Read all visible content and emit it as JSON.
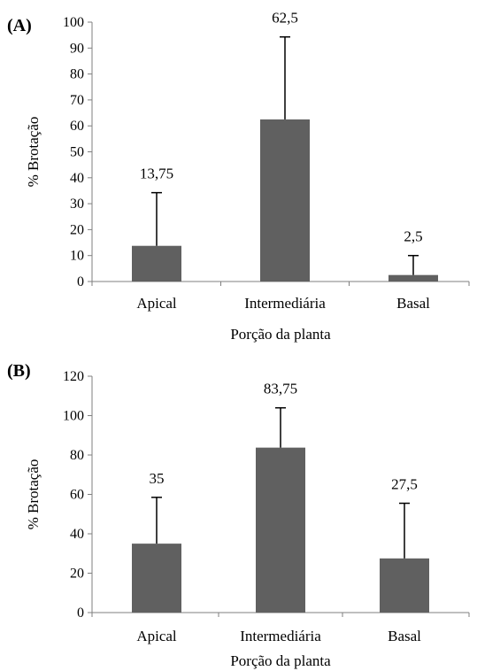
{
  "chart_data": [
    {
      "panel_label": "(A)",
      "type": "bar",
      "categories": [
        "Apical",
        "Intermediária",
        "Basal"
      ],
      "values": [
        13.75,
        62.5,
        2.5
      ],
      "value_labels": [
        "13,75",
        "62,5",
        "2,5"
      ],
      "error_plus": [
        20.5,
        31.8,
        7.5
      ],
      "xlabel": "Porção da planta",
      "ylabel": "% Brotação",
      "ylim": [
        0,
        100
      ],
      "yticks": [
        0,
        10,
        20,
        30,
        40,
        50,
        60,
        70,
        80,
        90,
        100
      ],
      "bar_color": "#606060",
      "grid": false
    },
    {
      "panel_label": "(B)",
      "type": "bar",
      "categories": [
        "Apical",
        "Intermediária",
        "Basal"
      ],
      "values": [
        35,
        83.75,
        27.5
      ],
      "value_labels": [
        "35",
        "83,75",
        "27,5"
      ],
      "error_plus": [
        23.5,
        20.2,
        28.0
      ],
      "xlabel": "Porção da planta",
      "ylabel": "% Brotação",
      "ylim": [
        0,
        120
      ],
      "yticks": [
        0,
        20,
        40,
        60,
        80,
        100,
        120
      ],
      "bar_color": "#606060",
      "grid": false
    }
  ]
}
